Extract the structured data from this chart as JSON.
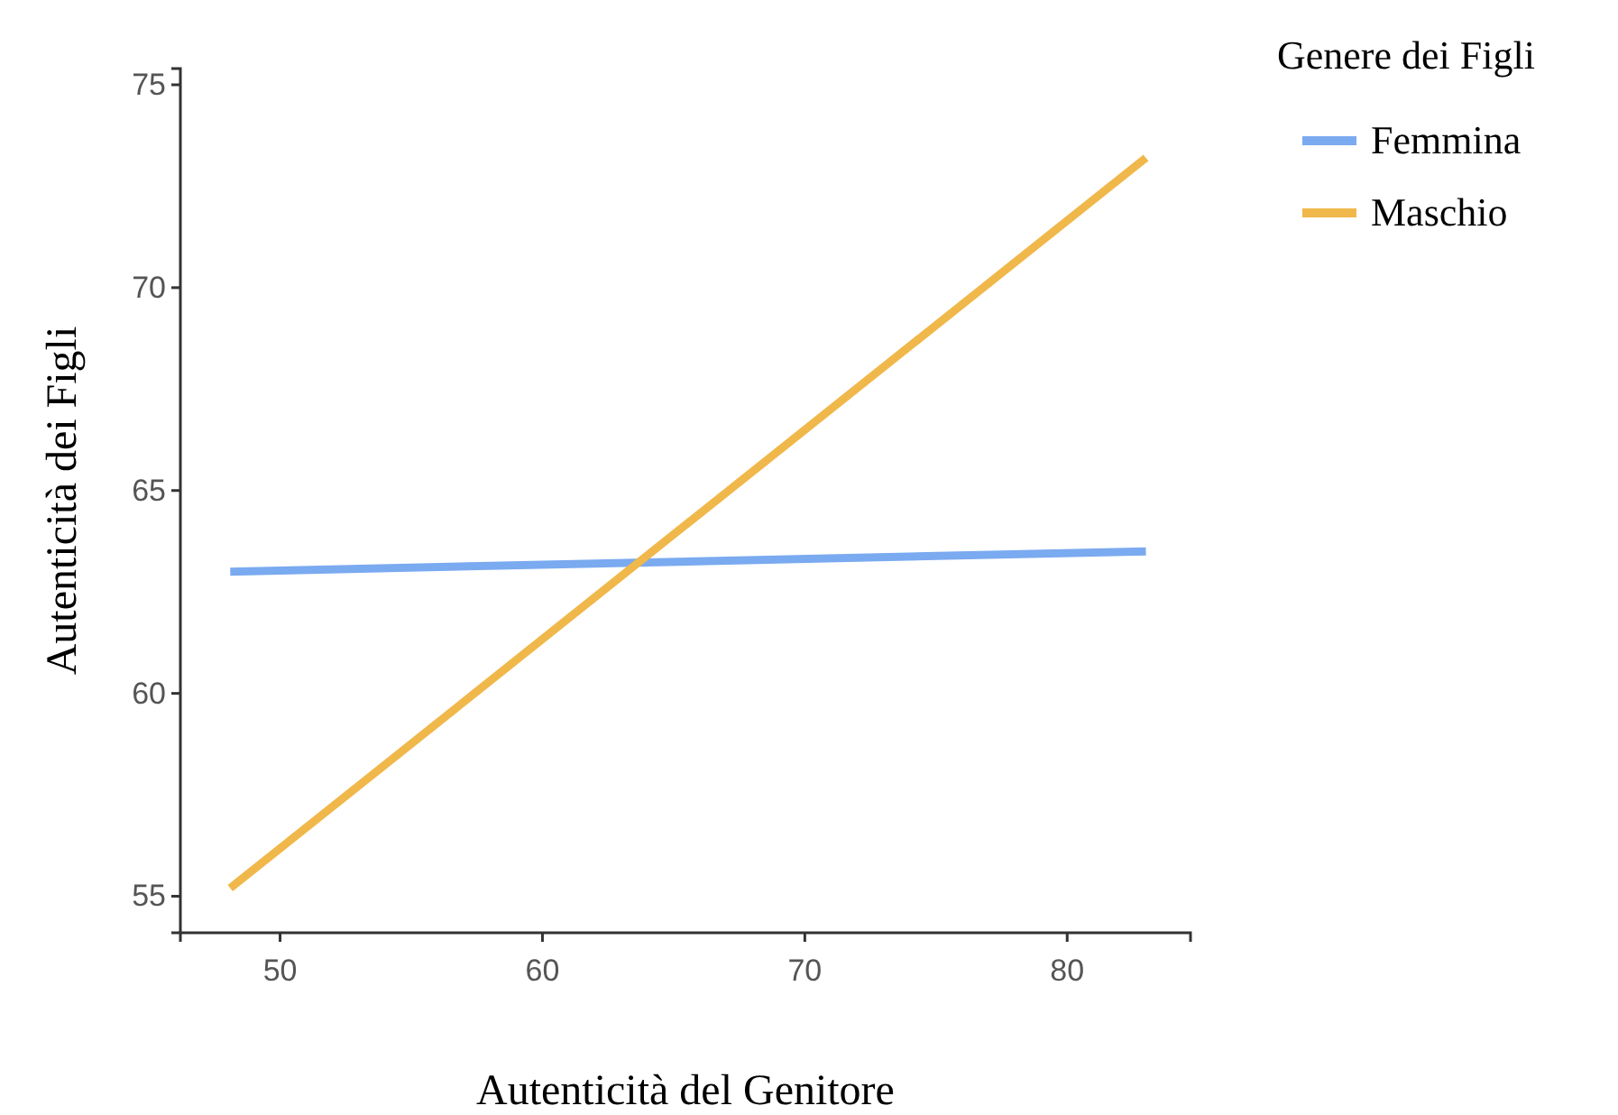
{
  "chart_data": {
    "type": "line",
    "xlabel": "Autenticità del Genitore",
    "ylabel": "Autenticità dei Figli",
    "legend_title": "Genere dei Figli",
    "legend": "top right",
    "xlim": [
      46.2,
      84.7
    ],
    "xticks": [
      50,
      60,
      70,
      80
    ],
    "ylim": [
      54.1,
      75.4
    ],
    "yticks": [
      55,
      60,
      65,
      70,
      75
    ],
    "marker": "none",
    "line_style": "solid",
    "x": [
      48.1,
      83
    ],
    "series": [
      {
        "name": "Femmina",
        "color": "#7aaaf0",
        "values": [
          63,
          63.5
        ]
      },
      {
        "name": "Maschio",
        "color": "#f0b84a",
        "values": [
          55.2,
          73.2
        ]
      }
    ]
  }
}
